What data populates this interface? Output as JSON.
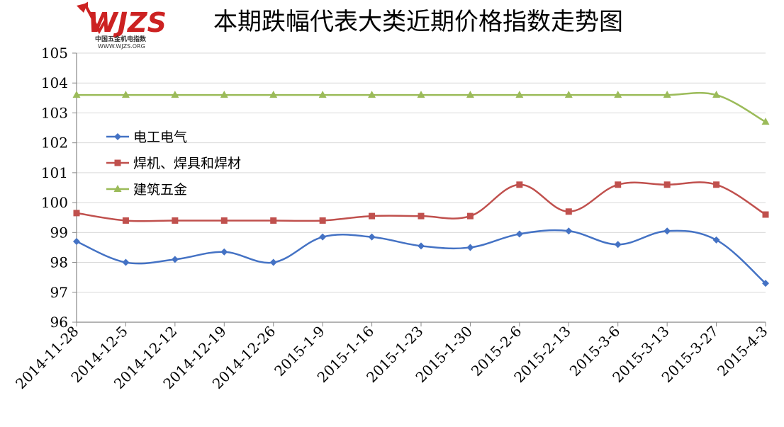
{
  "logo": {
    "name": "WJZS",
    "subtitle": "中国五金机电指数",
    "url": "WWW.WJZS.ORG"
  },
  "colors": {
    "series1": "#4472c4",
    "series2": "#c0504d",
    "series3": "#9bbb59",
    "logo": "#cc2222"
  },
  "chart_data": {
    "type": "line",
    "title": "本期跌幅代表大类近期价格指数走势图",
    "xlabel": "",
    "ylabel": "",
    "ylim": [
      96,
      105
    ],
    "yticks": [
      96,
      97,
      98,
      99,
      100,
      101,
      102,
      103,
      104,
      105
    ],
    "grid": true,
    "legend_position": "left-inside",
    "categories": [
      "2014-11-28",
      "2014-12-5",
      "2014-12-12",
      "2014-12-19",
      "2014-12-26",
      "2015-1-9",
      "2015-1-16",
      "2015-1-23",
      "2015-1-30",
      "2015-2-6",
      "2015-2-13",
      "2015-3-6",
      "2015-3-13",
      "2015-3-27",
      "2015-4-3"
    ],
    "series": [
      {
        "name": "电工电气",
        "marker": "diamond",
        "color": "#4472c4",
        "values": [
          98.7,
          98.0,
          98.1,
          98.35,
          98.0,
          98.85,
          98.85,
          98.55,
          98.5,
          98.95,
          99.05,
          98.6,
          99.05,
          98.75,
          97.3
        ]
      },
      {
        "name": "焊机、焊具和焊材",
        "marker": "square",
        "color": "#c0504d",
        "values": [
          99.65,
          99.4,
          99.4,
          99.4,
          99.4,
          99.4,
          99.55,
          99.55,
          99.55,
          100.6,
          99.7,
          100.6,
          100.6,
          100.6,
          99.6
        ]
      },
      {
        "name": "建筑五金",
        "marker": "triangle",
        "color": "#9bbb59",
        "values": [
          103.6,
          103.6,
          103.6,
          103.6,
          103.6,
          103.6,
          103.6,
          103.6,
          103.6,
          103.6,
          103.6,
          103.6,
          103.6,
          103.6,
          102.7
        ]
      }
    ]
  }
}
